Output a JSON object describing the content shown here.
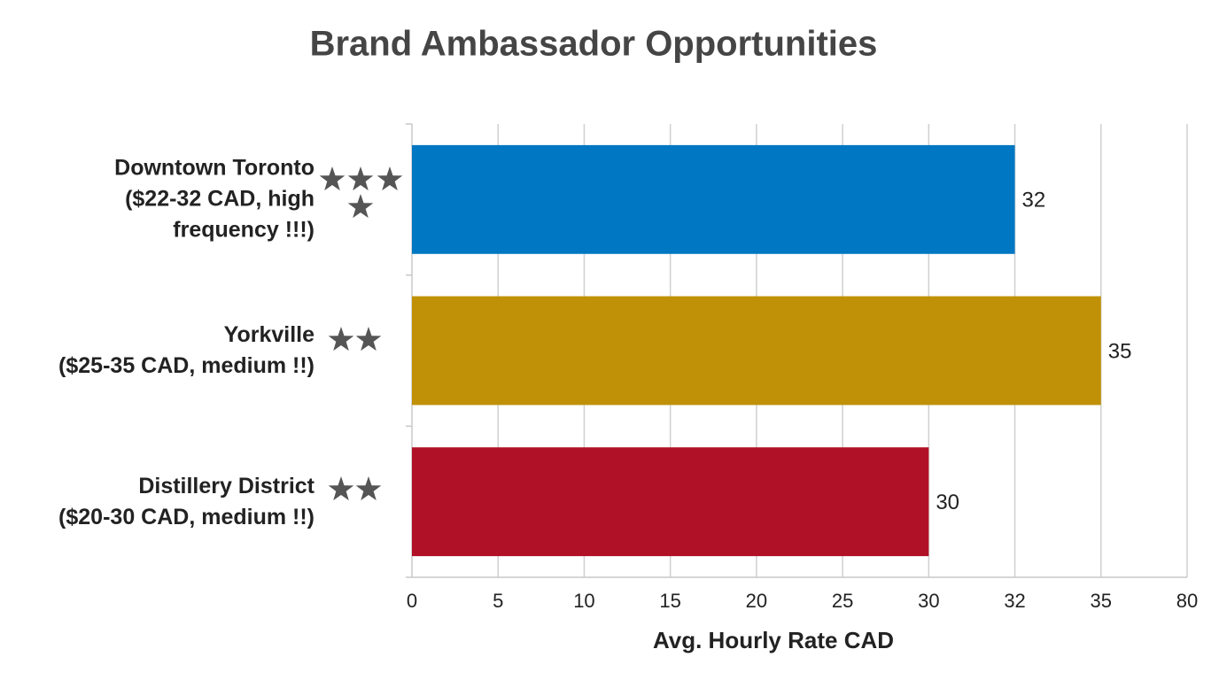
{
  "chart_data": {
    "type": "bar",
    "orientation": "horizontal",
    "title": "Brand Ambassador Opportunities",
    "x_label": "Avg. Hourly Rate CAD",
    "categories": [
      "Downtown Toronto\n($22-32 CAD, high\nfrequency !!!)",
      "Yorkville\n($25-35 CAD, medium !!)",
      "Distillery District\n($20-30 CAD, medium !!)"
    ],
    "values": [
      32,
      35,
      30
    ],
    "colors": [
      "#0077c2",
      "#c09106",
      "#b01127"
    ],
    "xlim": [
      0,
      80
    ],
    "xticks": [
      0,
      5,
      10,
      15,
      20,
      25,
      30,
      32,
      35,
      80
    ],
    "grid": true
  }
}
